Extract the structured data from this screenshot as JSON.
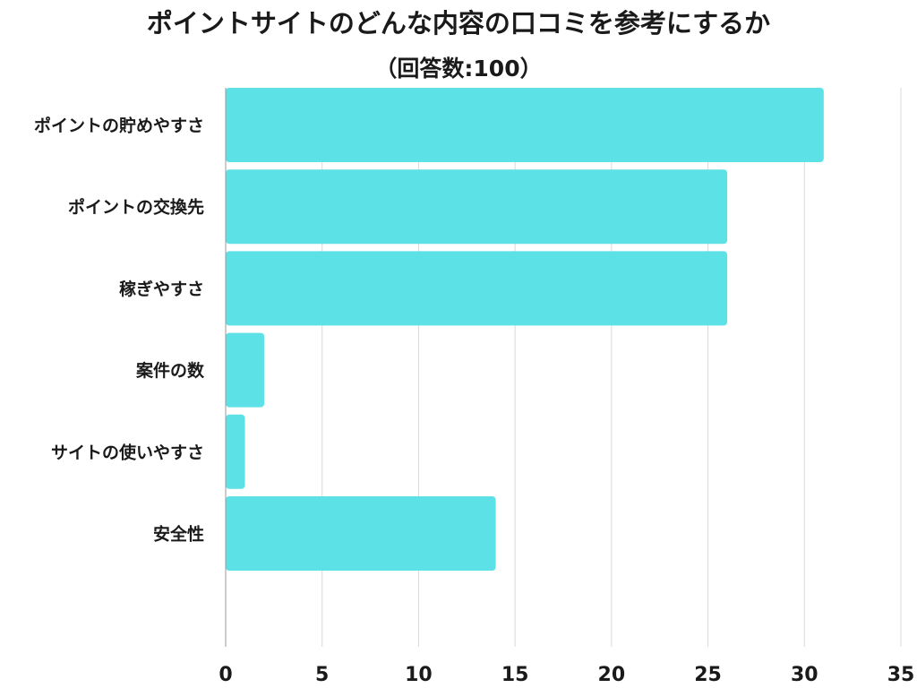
{
  "chart_data": {
    "type": "bar",
    "orientation": "horizontal",
    "title": "ポイントサイトのどんな内容の口コミを参考にするか",
    "subtitle": "（回答数:100）",
    "categories": [
      "ポイントの貯めやすさ",
      "ポイントの交換先",
      "稼ぎやすさ",
      "案件の数",
      "サイトの使いやすさ",
      "安全性"
    ],
    "values": [
      31,
      26,
      26,
      2,
      1,
      14
    ],
    "xlim": [
      0,
      35
    ],
    "x_ticks": [
      0,
      5,
      10,
      15,
      20,
      25,
      30,
      35
    ],
    "xlabel": "",
    "ylabel": "",
    "grid": true,
    "legend": "none",
    "bar_color": "#5ce1e6",
    "grid_color": "#d9d9d9"
  }
}
